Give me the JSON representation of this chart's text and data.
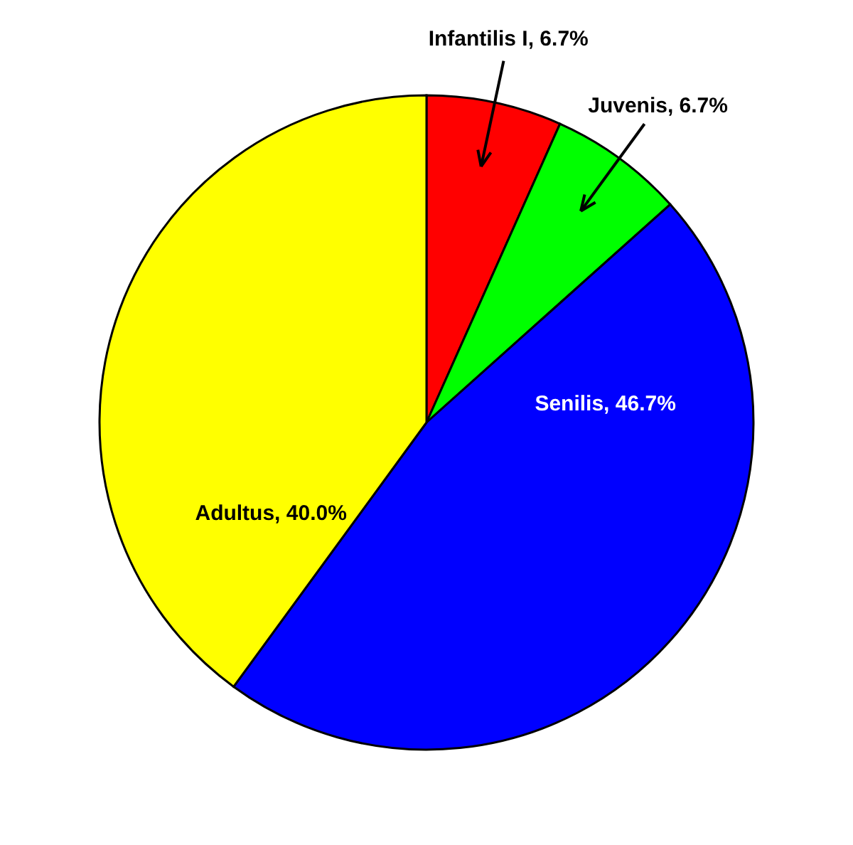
{
  "chart_data": {
    "type": "pie",
    "categories": [
      "Infantilis I",
      "Juvenis",
      "Senilis",
      "Adultus"
    ],
    "values": [
      6.7,
      6.7,
      46.7,
      40.0
    ],
    "colors": [
      "#ff0000",
      "#00ff00",
      "#0000ff",
      "#ffff00"
    ],
    "value_labels": [
      "6.7%",
      "6.7%",
      "46.7%",
      "40.0%"
    ]
  }
}
